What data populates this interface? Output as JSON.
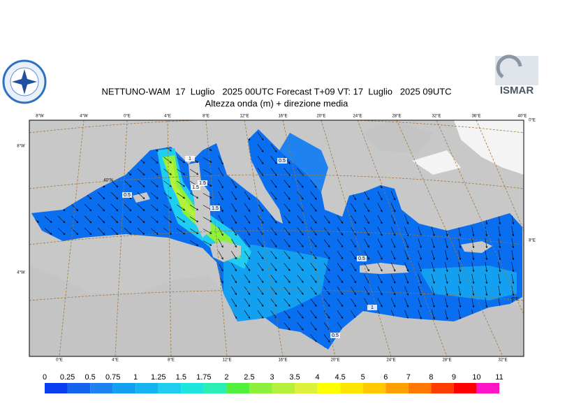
{
  "title": "NETTUNO-WAM  17  Luglio   2025 00UTC Forecast T+09 VT: 17  Luglio   2025 09UTC",
  "subtitle": "Altezza onda (m) + direzione media",
  "logo_text": "ISMAR",
  "top_labels": [
    "8°W",
    "4°W",
    "0°E",
    "4°E",
    "8°E",
    "12°E",
    "16°E",
    "20°E",
    "24°E",
    "28°E",
    "32°E",
    "36°E",
    "40°E"
  ],
  "bottom_labels": [
    "0°E",
    "4°E",
    "8°E",
    "12°E",
    "16°E",
    "20°E",
    "24°E",
    "28°E",
    "32°E"
  ],
  "left_labels": [
    "8°W",
    "4°W"
  ],
  "right_labels": [
    "0°E",
    "8°E",
    "0°E"
  ],
  "lat_label": "40°N",
  "contour_labels": [
    "1",
    "1.5",
    "0.5",
    "0.5",
    "1.5",
    "1.5",
    "0.5",
    "1",
    "0.5"
  ],
  "colorbar": {
    "ticks": [
      0,
      0.25,
      0.5,
      0.75,
      1,
      1.25,
      1.5,
      1.75,
      2,
      2.5,
      3,
      3.5,
      4,
      4.5,
      5,
      6,
      7,
      8,
      9,
      10,
      11
    ],
    "colors": [
      "#0a3cf0",
      "#1464f0",
      "#1e82f0",
      "#14a0f0",
      "#14b4f0",
      "#1ecdf0",
      "#1ee6dc",
      "#28f0b4",
      "#50f03c",
      "#8cf03c",
      "#b4f03c",
      "#dcf03c",
      "#ffff00",
      "#ffe600",
      "#ffc800",
      "#ffa000",
      "#ff7800",
      "#ff3c00",
      "#ff0000",
      "#ff14c8"
    ]
  }
}
